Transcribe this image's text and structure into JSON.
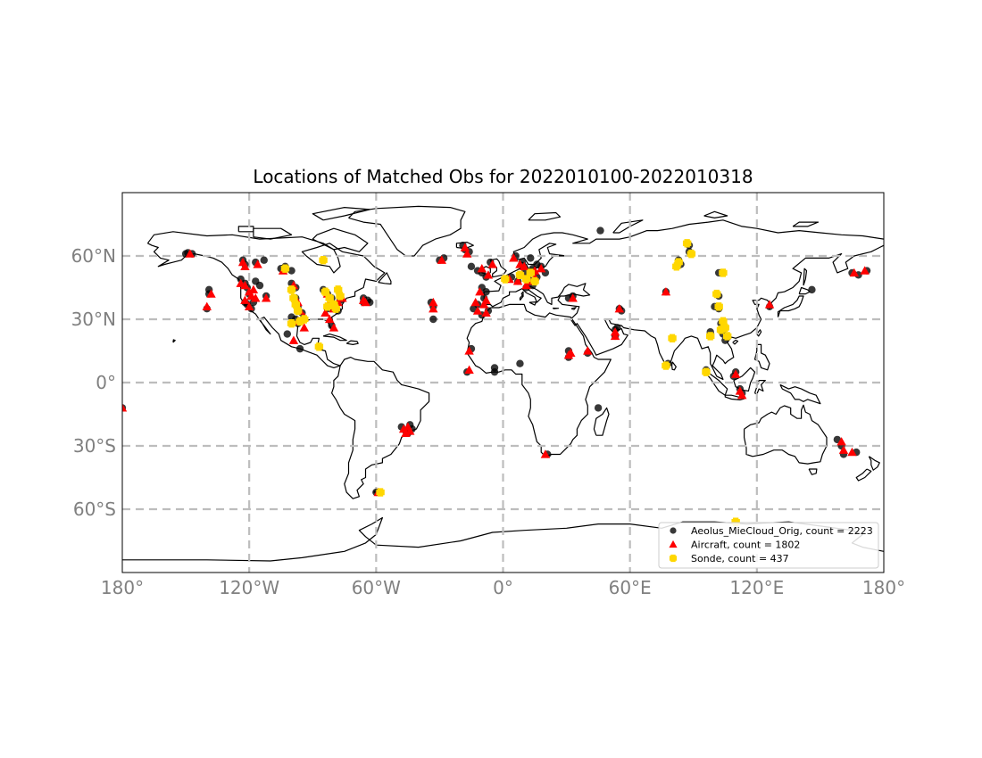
{
  "title": "Locations of Matched Obs for 2022010100-2022010318",
  "x_ticks": [
    {
      "lon": -180,
      "label": "180°"
    },
    {
      "lon": -120,
      "label": "120°W"
    },
    {
      "lon": -60,
      "label": "60°W"
    },
    {
      "lon": 0,
      "label": "0°"
    },
    {
      "lon": 60,
      "label": "60°E"
    },
    {
      "lon": 120,
      "label": "120°E"
    },
    {
      "lon": 180,
      "label": "180°"
    }
  ],
  "y_ticks": [
    {
      "lat": 60,
      "label": "60°N"
    },
    {
      "lat": 30,
      "label": "30°N"
    },
    {
      "lat": 0,
      "label": "0°"
    },
    {
      "lat": -30,
      "label": "30°S"
    },
    {
      "lat": -60,
      "label": "60°S"
    }
  ],
  "colors": {
    "coastline": "#000000",
    "gridline": "#bdbdbd",
    "tick_label": "#808080",
    "aeolus": "#000000",
    "aircraft": "#ff0000",
    "sonde": "#ffd700"
  },
  "legend": {
    "placement": "lower-right",
    "items": [
      {
        "marker": "circle",
        "color": "#000000",
        "label": "Aeolus_MieCloud_Orig, count = 2223"
      },
      {
        "marker": "triangle",
        "color": "#ff0000",
        "label": "Aircraft, count = 1802"
      },
      {
        "marker": "plus",
        "color": "#ffd700",
        "label": "Sonde, count = 437"
      }
    ]
  },
  "chart_data": {
    "type": "scatter",
    "projection": "PlateCarree",
    "xlim": [
      -180,
      180
    ],
    "ylim": [
      -90,
      90
    ],
    "grid": true,
    "series": [
      {
        "name": "Aeolus_MieCloud_Orig",
        "count": 2223,
        "marker": "circle",
        "color": "#000000",
        "points": [
          [
            -149,
            61.5
          ],
          [
            -147,
            61
          ],
          [
            -150,
            61
          ],
          [
            -123,
            58
          ],
          [
            -122,
            56
          ],
          [
            -117,
            57
          ],
          [
            -113,
            58
          ],
          [
            -124,
            49
          ],
          [
            -122,
            47
          ],
          [
            -121,
            45
          ],
          [
            -120,
            42
          ],
          [
            -122,
            38
          ],
          [
            -121,
            37
          ],
          [
            -119,
            35
          ],
          [
            -118,
            38
          ],
          [
            -117,
            48
          ],
          [
            -115,
            46
          ],
          [
            -112,
            41
          ],
          [
            -139,
            42
          ],
          [
            -139,
            44
          ],
          [
            -140,
            35
          ],
          [
            -105,
            54
          ],
          [
            -103,
            55
          ],
          [
            -100,
            53
          ],
          [
            -100,
            47
          ],
          [
            -98,
            45
          ],
          [
            -98,
            40
          ],
          [
            -97,
            36
          ],
          [
            -95,
            33
          ],
          [
            -98,
            30
          ],
          [
            -100,
            31
          ],
          [
            -97,
            28
          ],
          [
            -102,
            23
          ],
          [
            -96,
            16
          ],
          [
            -85,
            44
          ],
          [
            -83,
            42
          ],
          [
            -81,
            40
          ],
          [
            -80,
            36
          ],
          [
            -78,
            34
          ],
          [
            -77,
            39
          ],
          [
            -83,
            35
          ],
          [
            -81,
            27
          ],
          [
            -66,
            40
          ],
          [
            -64,
            39
          ],
          [
            -63,
            38
          ],
          [
            -66,
            38
          ],
          [
            -48,
            -21
          ],
          [
            -46,
            -23
          ],
          [
            -44,
            -20
          ],
          [
            -43,
            -22
          ],
          [
            -45,
            -24
          ],
          [
            -60,
            -52
          ],
          [
            -58,
            -52
          ],
          [
            -34,
            38
          ],
          [
            -33,
            36
          ],
          [
            -33,
            30
          ],
          [
            -30,
            58
          ],
          [
            -28,
            59
          ],
          [
            -19,
            65
          ],
          [
            -18,
            63
          ],
          [
            -16,
            62
          ],
          [
            -15,
            55
          ],
          [
            -10,
            52
          ],
          [
            -8,
            50
          ],
          [
            -6,
            57
          ],
          [
            -12,
            53
          ],
          [
            -10,
            45
          ],
          [
            -9,
            40
          ],
          [
            -12,
            37
          ],
          [
            -14,
            35
          ],
          [
            -7,
            34
          ],
          [
            -10,
            32
          ],
          [
            -8,
            43
          ],
          [
            -15,
            16
          ],
          [
            -17,
            5
          ],
          [
            -4,
            7
          ],
          [
            -4,
            5
          ],
          [
            8,
            9
          ],
          [
            6,
            60
          ],
          [
            9,
            57
          ],
          [
            10,
            52
          ],
          [
            12,
            49
          ],
          [
            14,
            54
          ],
          [
            16,
            50
          ],
          [
            18,
            55
          ],
          [
            20,
            52
          ],
          [
            4,
            50
          ],
          [
            7,
            48
          ],
          [
            11,
            45
          ],
          [
            14,
            46
          ],
          [
            16,
            56
          ],
          [
            13,
            59
          ],
          [
            21,
            -34
          ],
          [
            33,
            41
          ],
          [
            31,
            40
          ],
          [
            31,
            15
          ],
          [
            31,
            12
          ],
          [
            40,
            14
          ],
          [
            45,
            -12
          ],
          [
            53,
            25
          ],
          [
            55,
            35
          ],
          [
            56,
            34
          ],
          [
            54,
            26
          ],
          [
            53,
            22
          ],
          [
            46,
            72
          ],
          [
            77,
            43
          ],
          [
            78,
            9
          ],
          [
            80,
            21
          ],
          [
            83,
            58
          ],
          [
            84,
            56
          ],
          [
            88,
            65
          ],
          [
            88,
            62
          ],
          [
            102,
            52
          ],
          [
            102,
            41
          ],
          [
            100,
            36
          ],
          [
            102,
            35
          ],
          [
            103,
            28
          ],
          [
            104,
            23
          ],
          [
            98,
            24
          ],
          [
            105,
            20
          ],
          [
            96,
            6
          ],
          [
            109,
            3
          ],
          [
            110,
            5
          ],
          [
            112,
            -3
          ],
          [
            113,
            -5
          ],
          [
            126,
            36
          ],
          [
            146,
            44
          ],
          [
            158,
            -27
          ],
          [
            160,
            -30
          ],
          [
            161,
            -34
          ],
          [
            167,
            -33
          ],
          [
            165,
            52
          ],
          [
            168,
            51
          ],
          [
            172,
            53
          ],
          [
            -180,
            -12
          ]
        ]
      },
      {
        "name": "Aircraft",
        "count": 1802,
        "marker": "triangle",
        "color": "#ff0000",
        "points": [
          [
            -148,
            61
          ],
          [
            -123,
            57
          ],
          [
            -122,
            55
          ],
          [
            -116,
            56
          ],
          [
            -124,
            47
          ],
          [
            -122,
            46
          ],
          [
            -120,
            43
          ],
          [
            -118,
            44
          ],
          [
            -122,
            39
          ],
          [
            -120,
            36
          ],
          [
            -119,
            41
          ],
          [
            -117,
            40
          ],
          [
            -112,
            40
          ],
          [
            -138,
            42
          ],
          [
            -140,
            36
          ],
          [
            -104,
            53
          ],
          [
            -99,
            46
          ],
          [
            -97,
            38
          ],
          [
            -96,
            34
          ],
          [
            -94,
            31
          ],
          [
            -97,
            29
          ],
          [
            -94,
            26
          ],
          [
            -99,
            20
          ],
          [
            -83,
            42
          ],
          [
            -82,
            38
          ],
          [
            -80,
            35
          ],
          [
            -78,
            38
          ],
          [
            -76,
            40
          ],
          [
            -82,
            30
          ],
          [
            -80,
            26
          ],
          [
            -84,
            33
          ],
          [
            -66,
            39
          ],
          [
            -65,
            38
          ],
          [
            -47,
            -22
          ],
          [
            -45,
            -21
          ],
          [
            -44,
            -23
          ],
          [
            -46,
            -24
          ],
          [
            -59,
            -52
          ],
          [
            -33,
            38
          ],
          [
            -33,
            35
          ],
          [
            -29,
            58
          ],
          [
            -18,
            64
          ],
          [
            -17,
            61
          ],
          [
            -10,
            54
          ],
          [
            -7,
            51
          ],
          [
            -5,
            56
          ],
          [
            -11,
            43
          ],
          [
            -8,
            39
          ],
          [
            -9,
            37
          ],
          [
            -12,
            34
          ],
          [
            -8,
            33
          ],
          [
            -13,
            38
          ],
          [
            -16,
            15
          ],
          [
            -16,
            6
          ],
          [
            5,
            59
          ],
          [
            8,
            56
          ],
          [
            10,
            55
          ],
          [
            9,
            51
          ],
          [
            12,
            48
          ],
          [
            15,
            53
          ],
          [
            18,
            54
          ],
          [
            11,
            46
          ],
          [
            7,
            48
          ],
          [
            15,
            50
          ],
          [
            3,
            49
          ],
          [
            20,
            -34
          ],
          [
            33,
            40
          ],
          [
            32,
            14
          ],
          [
            31,
            13
          ],
          [
            40,
            15
          ],
          [
            53,
            24
          ],
          [
            55,
            35
          ],
          [
            53,
            22
          ],
          [
            77,
            43
          ],
          [
            110,
            4
          ],
          [
            112,
            -4
          ],
          [
            113,
            -6
          ],
          [
            126,
            37
          ],
          [
            160,
            -28
          ],
          [
            161,
            -32
          ],
          [
            165,
            -33
          ],
          [
            166,
            52
          ],
          [
            171,
            53
          ],
          [
            -180,
            -12
          ]
        ]
      },
      {
        "name": "Sonde",
        "count": 437,
        "marker": "plus",
        "color": "#ffd700",
        "points": [
          [
            -103,
            54
          ],
          [
            -100,
            44
          ],
          [
            -99,
            40
          ],
          [
            -98,
            37
          ],
          [
            -97,
            34
          ],
          [
            -96,
            29
          ],
          [
            -100,
            28
          ],
          [
            -94,
            30
          ],
          [
            -87,
            17
          ],
          [
            -85,
            58
          ],
          [
            -84,
            43
          ],
          [
            -82,
            40
          ],
          [
            -80,
            37
          ],
          [
            -78,
            44
          ],
          [
            -77,
            41
          ],
          [
            -79,
            35
          ],
          [
            -83,
            36
          ],
          [
            -58,
            -52
          ],
          [
            1,
            49
          ],
          [
            8,
            51
          ],
          [
            11,
            49
          ],
          [
            13,
            52
          ],
          [
            15,
            48
          ],
          [
            80,
            21
          ],
          [
            83,
            57
          ],
          [
            82,
            55
          ],
          [
            87,
            66
          ],
          [
            89,
            61
          ],
          [
            104,
            52
          ],
          [
            101,
            42
          ],
          [
            102,
            36
          ],
          [
            104,
            29
          ],
          [
            103,
            25
          ],
          [
            106,
            22
          ],
          [
            98,
            22
          ],
          [
            105,
            26
          ],
          [
            96,
            5
          ],
          [
            77,
            8
          ],
          [
            110,
            -66
          ]
        ]
      }
    ]
  }
}
